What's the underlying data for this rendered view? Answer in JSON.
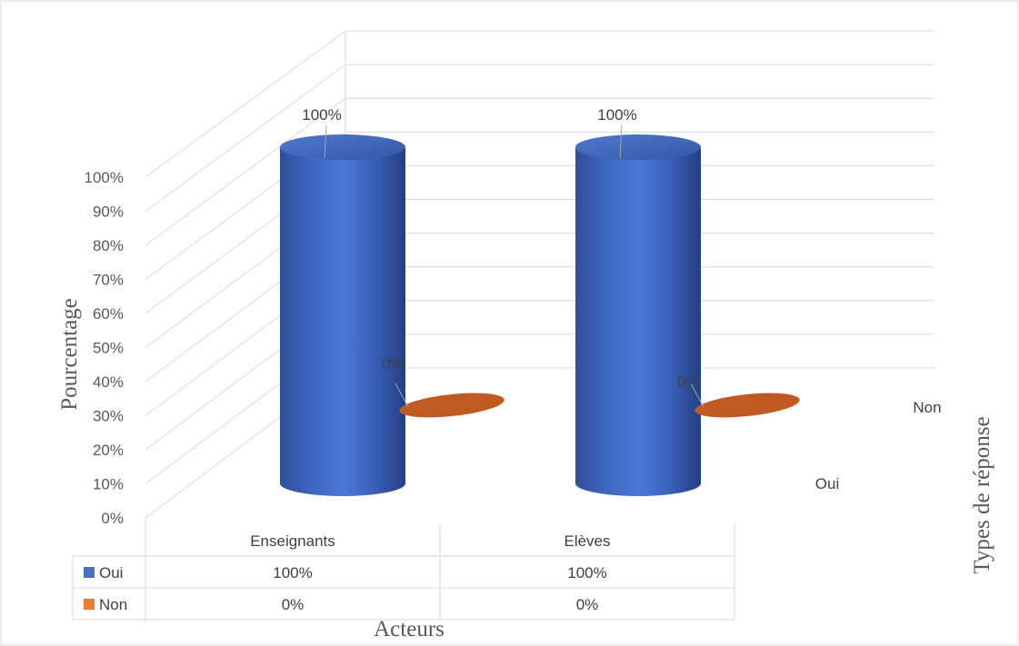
{
  "chart_data": {
    "type": "bar",
    "subtype": "3d-cylinder",
    "categories": [
      "Enseignants",
      "Elèves"
    ],
    "series": [
      {
        "name": "Oui",
        "values": [
          100,
          100
        ],
        "labels": [
          "100%",
          "100%"
        ],
        "color": "#4472C4"
      },
      {
        "name": "Non",
        "values": [
          0,
          0
        ],
        "labels": [
          "0%",
          "0%"
        ],
        "color": "#ED7D31"
      }
    ],
    "y_ticks": [
      "0%",
      "10%",
      "20%",
      "30%",
      "40%",
      "50%",
      "60%",
      "70%",
      "80%",
      "90%",
      "100%"
    ],
    "ylim": [
      0,
      100
    ],
    "ylabel": "Pourcentage",
    "xlabel": "Acteurs",
    "zlabel": "Types de réponse",
    "depth_labels": [
      "Oui",
      "Non"
    ],
    "grid": true,
    "legend": "data-table",
    "data_table": {
      "rows": [
        {
          "series": "Oui",
          "cells": [
            "100%",
            "100%"
          ],
          "color": "#4472C4"
        },
        {
          "series": "Non",
          "cells": [
            "0%",
            "0%"
          ],
          "color": "#ED7D31"
        }
      ]
    }
  }
}
